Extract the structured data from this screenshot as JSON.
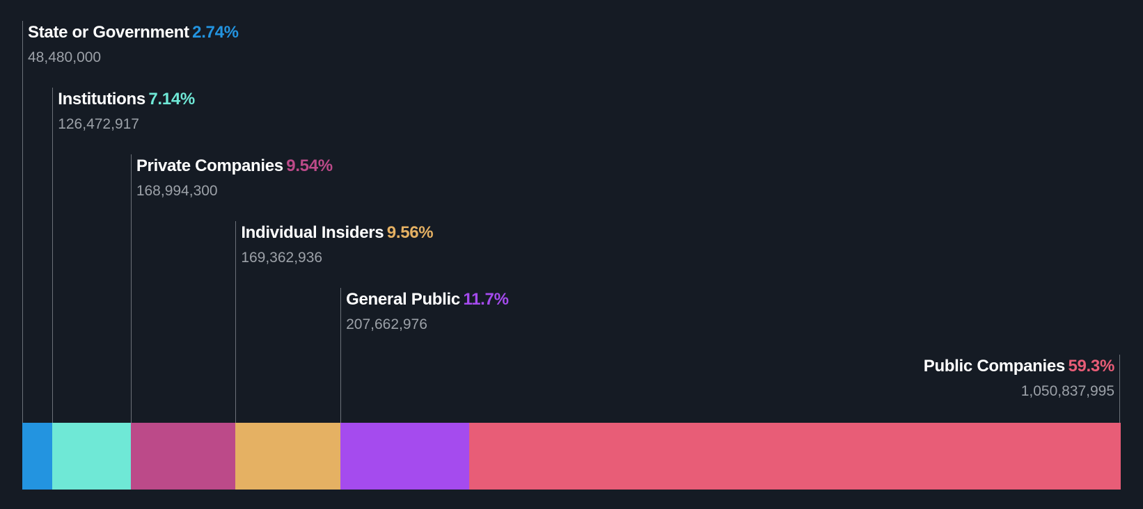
{
  "chart_data": {
    "type": "stacked-bar",
    "title": "",
    "categories": [
      "State or Government",
      "Institutions",
      "Private Companies",
      "Individual Insiders",
      "General Public",
      "Public Companies"
    ],
    "values": [
      2.74,
      7.14,
      9.54,
      9.56,
      11.7,
      59.3
    ],
    "labels": [
      {
        "name": "State or Government",
        "pct": "2.74%",
        "count": "48,480,000",
        "color": "#2394e0"
      },
      {
        "name": "Institutions",
        "pct": "7.14%",
        "count": "126,472,917",
        "color": "#6fe8d6"
      },
      {
        "name": "Private Companies",
        "pct": "9.54%",
        "count": "168,994,300",
        "color": "#bc4a89"
      },
      {
        "name": "Individual Insiders",
        "pct": "9.56%",
        "count": "169,362,936",
        "color": "#e5b163"
      },
      {
        "name": "General Public",
        "pct": "11.7%",
        "count": "207,662,976",
        "color": "#a54bee"
      },
      {
        "name": "Public Companies",
        "pct": "59.3%",
        "count": "1,050,837,995",
        "color": "#e85d77"
      }
    ],
    "xlabel": "",
    "ylabel": ""
  }
}
